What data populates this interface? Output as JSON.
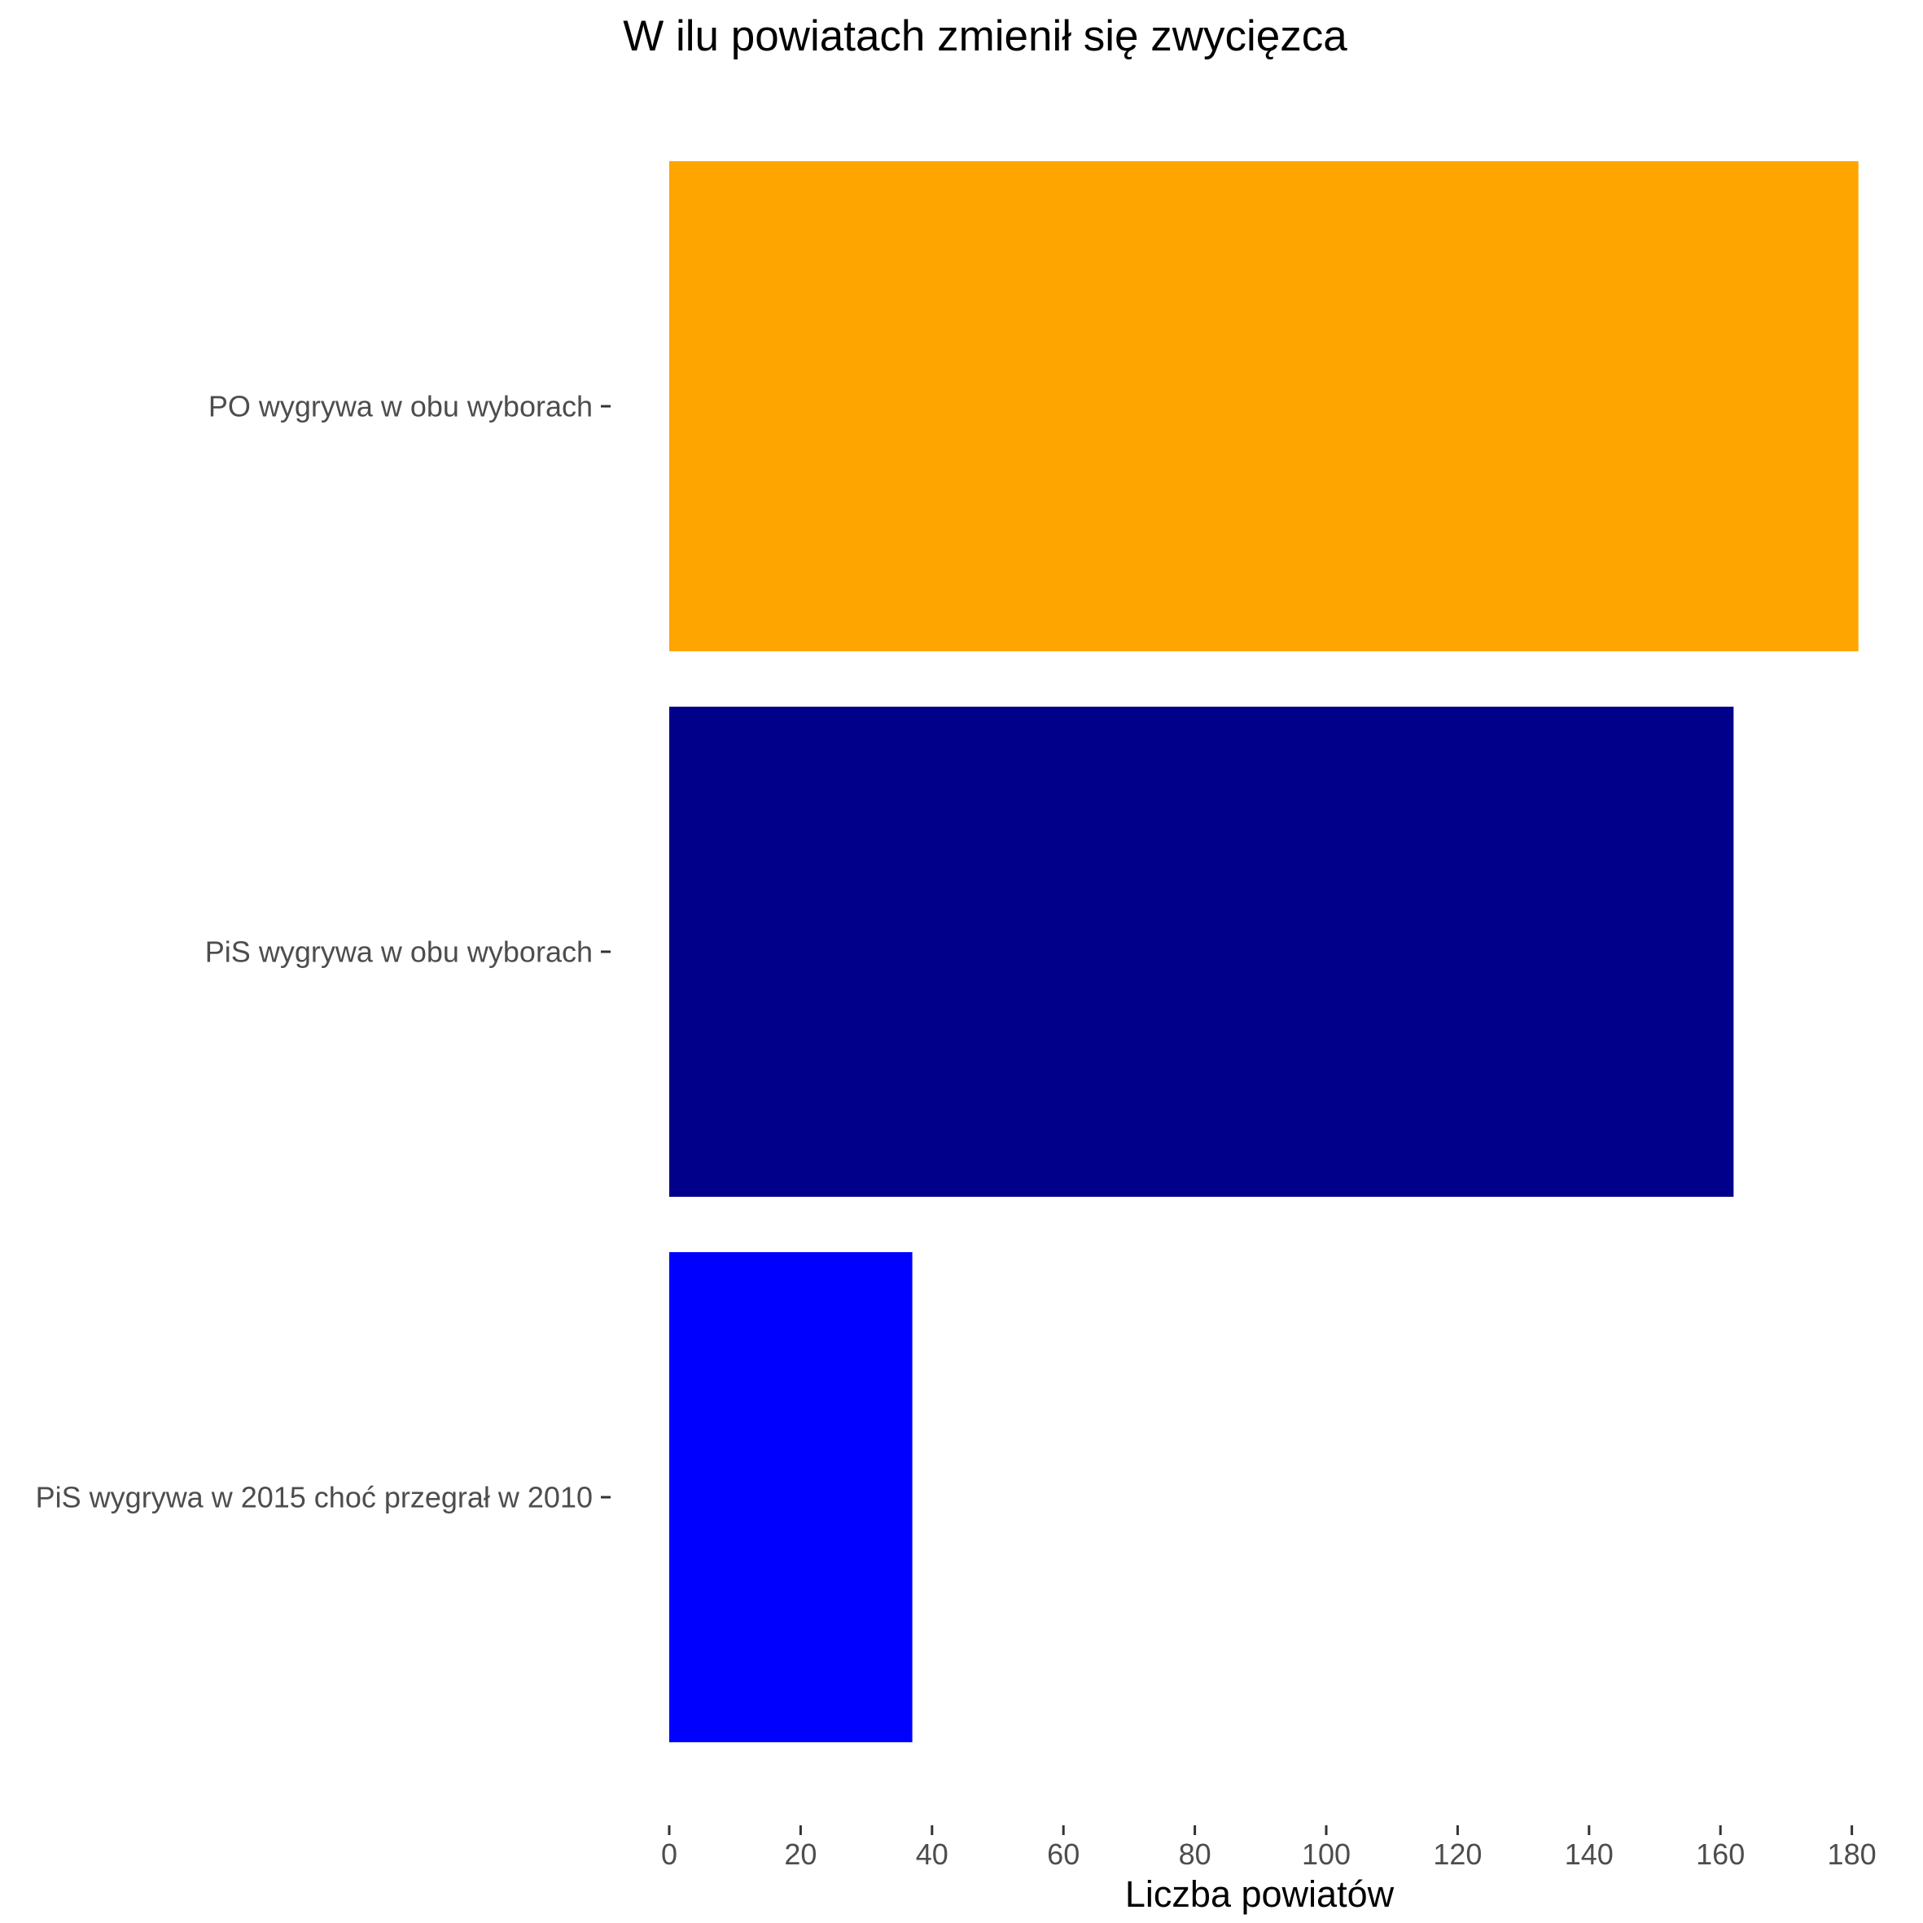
{
  "chart_data": {
    "type": "bar",
    "orientation": "horizontal",
    "title": "W ilu powiatach zmienił się zwycięzca",
    "xlabel": "Liczba powiatów",
    "ylabel": "",
    "xlim": [
      0,
      181
    ],
    "xticks": [
      0,
      20,
      40,
      60,
      80,
      100,
      120,
      140,
      160,
      180
    ],
    "grid": false,
    "legend": "none",
    "categories": [
      "PO wygrywa w obu wyborach",
      "PiS wygrywa w obu wyborach",
      "PiS wygrywa w 2015 choć przegrał w 2010"
    ],
    "values": [
      181,
      162,
      37
    ],
    "colors": [
      "#FFA500",
      "#00008B",
      "#0000FF"
    ]
  }
}
